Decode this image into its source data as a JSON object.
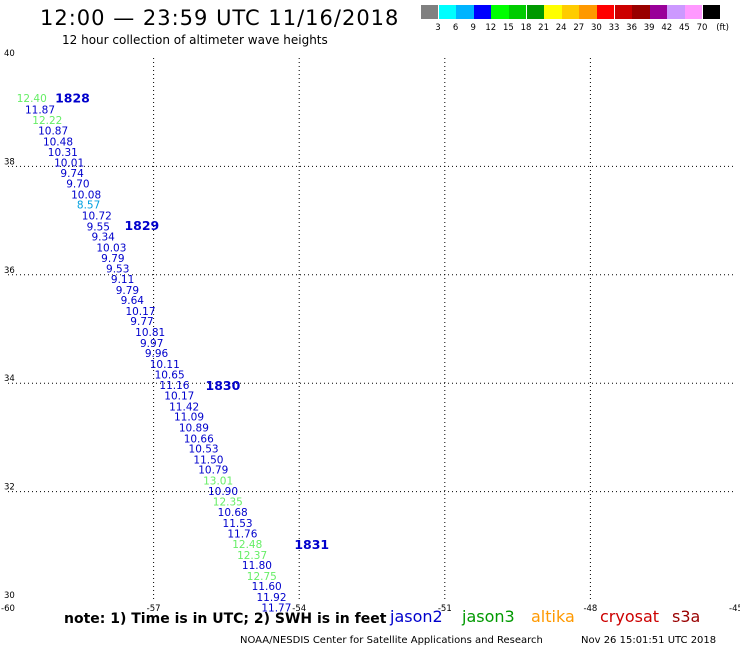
{
  "header": {
    "title": "12:00 — 23:59 UTC 11/16/2018",
    "subtitle": "12 hour collection of altimeter wave heights"
  },
  "colorbar": {
    "unit": "(ft)",
    "colors": [
      "#808080",
      "#00ffff",
      "#00b4ff",
      "#0000ff",
      "#00ff00",
      "#00cc00",
      "#009900",
      "#ffff00",
      "#ffcc00",
      "#ff9900",
      "#ff0000",
      "#cc0000",
      "#990000",
      "#990099",
      "#cc99ff",
      "#ff99ff",
      "#000000"
    ],
    "labels": [
      "3",
      "6",
      "9",
      "12",
      "15",
      "18",
      "21",
      "24",
      "27",
      "30",
      "33",
      "36",
      "39",
      "42",
      "45",
      "70"
    ]
  },
  "chart_data": {
    "type": "scatter",
    "x_axis": {
      "range": [
        -60,
        -45
      ],
      "ticks": [
        -60,
        -57,
        -54,
        -51,
        -48,
        -45
      ]
    },
    "y_axis": {
      "range": [
        30,
        40
      ],
      "ticks": [
        30,
        32,
        34,
        36,
        38,
        40
      ]
    },
    "grid": true,
    "points": [
      {
        "lon": -59.82,
        "lat": 39.19,
        "value": "12.40",
        "color": "#66ee66"
      },
      {
        "lon": -59.65,
        "lat": 38.98,
        "value": "11.87",
        "color": "#0000cc"
      },
      {
        "lon": -59.5,
        "lat": 38.78,
        "value": "12.22",
        "color": "#66ee66"
      },
      {
        "lon": -59.38,
        "lat": 38.59,
        "value": "10.87",
        "color": "#0000cc"
      },
      {
        "lon": -59.28,
        "lat": 38.39,
        "value": "10.48",
        "color": "#0000cc"
      },
      {
        "lon": -59.18,
        "lat": 38.19,
        "value": "10.31",
        "color": "#0000cc"
      },
      {
        "lon": -59.05,
        "lat": 38.0,
        "value": "10.01",
        "color": "#0000cc"
      },
      {
        "lon": -58.92,
        "lat": 37.8,
        "value": "9.74",
        "color": "#0000cc"
      },
      {
        "lon": -58.8,
        "lat": 37.61,
        "value": "9.70",
        "color": "#0000cc"
      },
      {
        "lon": -58.7,
        "lat": 37.41,
        "value": "10.08",
        "color": "#0000cc"
      },
      {
        "lon": -58.58,
        "lat": 37.22,
        "value": "8.57",
        "color": "#00a0e0"
      },
      {
        "lon": -58.48,
        "lat": 37.02,
        "value": "10.72",
        "color": "#0000cc"
      },
      {
        "lon": -58.38,
        "lat": 36.82,
        "value": "9.55",
        "color": "#0000cc"
      },
      {
        "lon": -58.28,
        "lat": 36.63,
        "value": "9.34",
        "color": "#0000cc"
      },
      {
        "lon": -58.18,
        "lat": 36.43,
        "value": "10.03",
        "color": "#0000cc"
      },
      {
        "lon": -58.08,
        "lat": 36.24,
        "value": "9.79",
        "color": "#0000cc"
      },
      {
        "lon": -57.98,
        "lat": 36.04,
        "value": "9.53",
        "color": "#0000cc"
      },
      {
        "lon": -57.88,
        "lat": 35.85,
        "value": "9.11",
        "color": "#0000cc"
      },
      {
        "lon": -57.78,
        "lat": 35.65,
        "value": "9.79",
        "color": "#0000cc"
      },
      {
        "lon": -57.68,
        "lat": 35.46,
        "value": "9.64",
        "color": "#0000cc"
      },
      {
        "lon": -57.58,
        "lat": 35.26,
        "value": "10.17",
        "color": "#0000cc"
      },
      {
        "lon": -57.48,
        "lat": 35.07,
        "value": "9.77",
        "color": "#0000cc"
      },
      {
        "lon": -57.38,
        "lat": 34.87,
        "value": "10.81",
        "color": "#0000cc"
      },
      {
        "lon": -57.28,
        "lat": 34.67,
        "value": "9.97",
        "color": "#0000cc"
      },
      {
        "lon": -57.18,
        "lat": 34.48,
        "value": "9.96",
        "color": "#0000cc"
      },
      {
        "lon": -57.08,
        "lat": 34.28,
        "value": "10.11",
        "color": "#0000cc"
      },
      {
        "lon": -56.98,
        "lat": 34.09,
        "value": "10.65",
        "color": "#0000cc"
      },
      {
        "lon": -56.88,
        "lat": 33.89,
        "value": "11.16",
        "color": "#0000cc"
      },
      {
        "lon": -56.78,
        "lat": 33.7,
        "value": "10.17",
        "color": "#0000cc"
      },
      {
        "lon": -56.68,
        "lat": 33.5,
        "value": "11.42",
        "color": "#0000cc"
      },
      {
        "lon": -56.58,
        "lat": 33.31,
        "value": "11.09",
        "color": "#0000cc"
      },
      {
        "lon": -56.48,
        "lat": 33.11,
        "value": "10.89",
        "color": "#0000cc"
      },
      {
        "lon": -56.38,
        "lat": 32.91,
        "value": "10.66",
        "color": "#0000cc"
      },
      {
        "lon": -56.28,
        "lat": 32.72,
        "value": "10.53",
        "color": "#0000cc"
      },
      {
        "lon": -56.18,
        "lat": 32.52,
        "value": "11.50",
        "color": "#0000cc"
      },
      {
        "lon": -56.08,
        "lat": 32.33,
        "value": "10.79",
        "color": "#0000cc"
      },
      {
        "lon": -55.98,
        "lat": 32.13,
        "value": "13.01",
        "color": "#66ee66"
      },
      {
        "lon": -55.88,
        "lat": 31.94,
        "value": "10.90",
        "color": "#0000cc"
      },
      {
        "lon": -55.78,
        "lat": 31.74,
        "value": "12.35",
        "color": "#66ee66"
      },
      {
        "lon": -55.68,
        "lat": 31.55,
        "value": "10.68",
        "color": "#0000cc"
      },
      {
        "lon": -55.58,
        "lat": 31.35,
        "value": "11.53",
        "color": "#0000cc"
      },
      {
        "lon": -55.48,
        "lat": 31.15,
        "value": "11.76",
        "color": "#0000cc"
      },
      {
        "lon": -55.38,
        "lat": 30.96,
        "value": "12.48",
        "color": "#66ee66"
      },
      {
        "lon": -55.28,
        "lat": 30.76,
        "value": "12.37",
        "color": "#66ee66"
      },
      {
        "lon": -55.18,
        "lat": 30.57,
        "value": "11.80",
        "color": "#0000cc"
      },
      {
        "lon": -55.08,
        "lat": 30.37,
        "value": "12.75",
        "color": "#66ee66"
      },
      {
        "lon": -54.98,
        "lat": 30.18,
        "value": "11.60",
        "color": "#0000cc"
      },
      {
        "lon": -54.88,
        "lat": 29.98,
        "value": "11.92",
        "color": "#0000cc"
      },
      {
        "lon": -54.78,
        "lat": 29.79,
        "value": "11.77",
        "color": "#0000cc"
      }
    ],
    "annotations": [
      {
        "text": "1828",
        "lon": -59.03,
        "lat": 39.18,
        "color": "#0000cc"
      },
      {
        "text": "1829",
        "lon": -57.6,
        "lat": 36.83,
        "color": "#0000cc"
      },
      {
        "text": "1830",
        "lon": -55.93,
        "lat": 33.87,
        "color": "#0000cc"
      },
      {
        "text": "1831",
        "lon": -54.1,
        "lat": 30.94,
        "color": "#0000cc"
      }
    ]
  },
  "footer": {
    "note": "note:  1) Time is in UTC;  2) SWH is in feet",
    "satellites": [
      {
        "name": "jason2",
        "color": "#0000cc"
      },
      {
        "name": "jason3",
        "color": "#009900"
      },
      {
        "name": "altika",
        "color": "#ff9900"
      },
      {
        "name": "cryosat",
        "color": "#cc0000"
      },
      {
        "name": "s3a",
        "color": "#990000"
      }
    ],
    "credit": "NOAA/NESDIS Center for Satellite Applications and Research",
    "timestamp": "Nov 26 15:01:51 UTC 2018"
  }
}
